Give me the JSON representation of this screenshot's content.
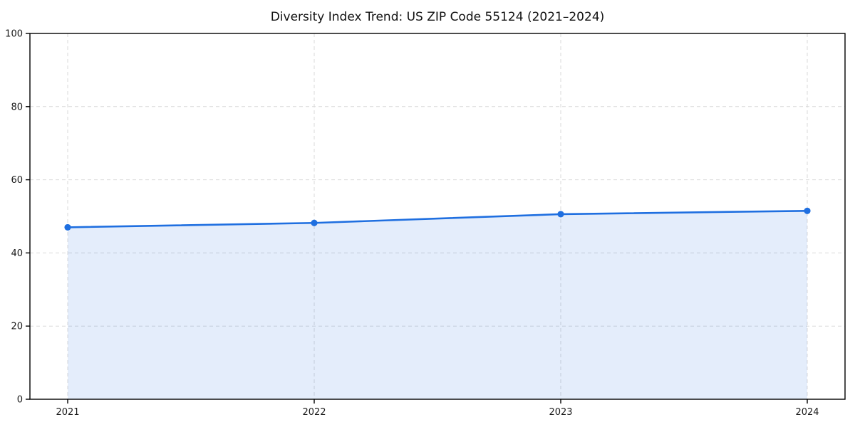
{
  "chart_data": {
    "type": "area",
    "title": "Diversity Index Trend: US ZIP Code 55124 (2021–2024)",
    "series_name": "Diversity Index",
    "categories": [
      "2021",
      "2022",
      "2023",
      "2024"
    ],
    "values": [
      47.0,
      48.2,
      50.6,
      51.5
    ],
    "xlabel": "",
    "ylabel": "",
    "ylim": [
      0,
      100
    ],
    "yticks": [
      0,
      20,
      40,
      60,
      80,
      100
    ],
    "grid": "dashed, both axes",
    "legend": "none",
    "marker": "circle",
    "colors": {
      "line": "#1f6fe0",
      "marker": "#1f6fe0",
      "fill": "#1f6fe0",
      "fill_opacity": 0.12,
      "grid": "#d9d9d9",
      "axis": "#000000",
      "tick_text": "#1a1a1a",
      "title_text": "#111111",
      "background": "#ffffff"
    }
  }
}
